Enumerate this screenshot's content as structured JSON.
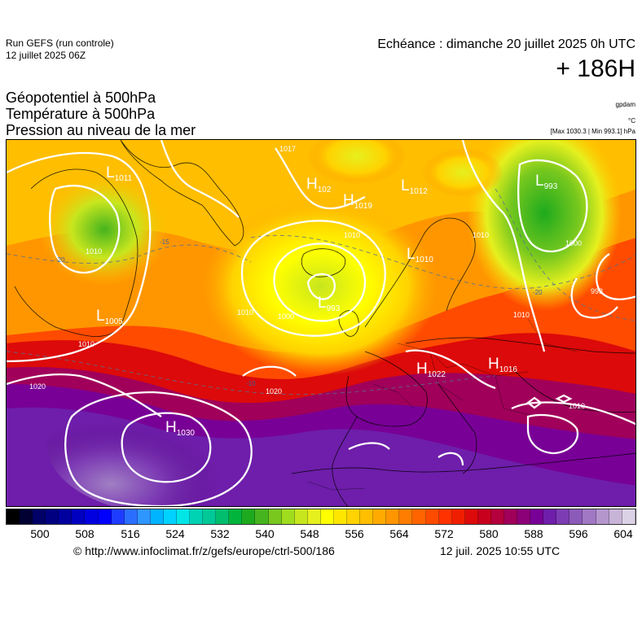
{
  "header": {
    "run_title": "Run GEFS (run controle)",
    "run_date": "12 juillet 2025 06Z",
    "valid_time": "Echéance : dimanche 20 juillet 2025 0h UTC",
    "lead_time": "+ 186H"
  },
  "parameters": {
    "line1": "Géopotentiel à 500hPa",
    "line2": "Température à 500hPa",
    "line3": "Pression au niveau de la mer"
  },
  "units": {
    "geopotential": "gpdam",
    "temperature": "°C",
    "pressure_stats": "[Max 1030.3 | Min 993.1] hPa"
  },
  "map": {
    "pressure_centers": [
      {
        "type": "L",
        "value": "1011"
      },
      {
        "type": "H",
        "value": "102"
      },
      {
        "type": "H",
        "value": "1019"
      },
      {
        "type": "L",
        "value": "1012"
      },
      {
        "type": "L",
        "value": "993"
      },
      {
        "type": "L",
        "value": "1010"
      },
      {
        "type": "L",
        "value": "993"
      },
      {
        "type": "L",
        "value": "1005"
      },
      {
        "type": "H",
        "value": "1022"
      },
      {
        "type": "H",
        "value": "1016"
      },
      {
        "type": "H",
        "value": "1030"
      }
    ],
    "isobar_labels": [
      "1017",
      "1010",
      "1010",
      "1010",
      "1000",
      "1010",
      "1000",
      "1010",
      "1010",
      "1020",
      "1020",
      "1010",
      "993"
    ],
    "isotherm_labels": [
      "-15",
      "-20",
      "-10",
      "-20"
    ]
  },
  "colorbar": {
    "tick_labels": [
      "500",
      "508",
      "516",
      "524",
      "532",
      "540",
      "548",
      "556",
      "564",
      "572",
      "580",
      "588",
      "596",
      "604"
    ],
    "colors": [
      "#000000",
      "#000033",
      "#000066",
      "#000080",
      "#00009e",
      "#0000c0",
      "#0000e0",
      "#0000ff",
      "#1e3cff",
      "#2a6eff",
      "#2e96ff",
      "#00b4ff",
      "#00d2ff",
      "#00e6e6",
      "#00d2b4",
      "#00c896",
      "#00be6e",
      "#00b43c",
      "#1eaa1e",
      "#46b41e",
      "#78c81e",
      "#a0dc1e",
      "#c8e61e",
      "#e6f01e",
      "#ffff00",
      "#ffe600",
      "#ffd200",
      "#ffbe00",
      "#ffaa00",
      "#ff9600",
      "#ff7d00",
      "#ff6400",
      "#ff4b00",
      "#ff3200",
      "#f01e00",
      "#dc0a0a",
      "#c8001e",
      "#b4003c",
      "#a0005a",
      "#8c0078",
      "#780096",
      "#6e1eaa",
      "#7d3cb4",
      "#8c5ab9",
      "#a078c3",
      "#b496cd",
      "#c8b4d7",
      "#dcd2e6"
    ]
  },
  "footer": {
    "credit": "© http://www.infoclimat.fr/z/gefs/europe/ctrl-500/186",
    "issued": "12 juil. 2025 10:55 UTC"
  }
}
